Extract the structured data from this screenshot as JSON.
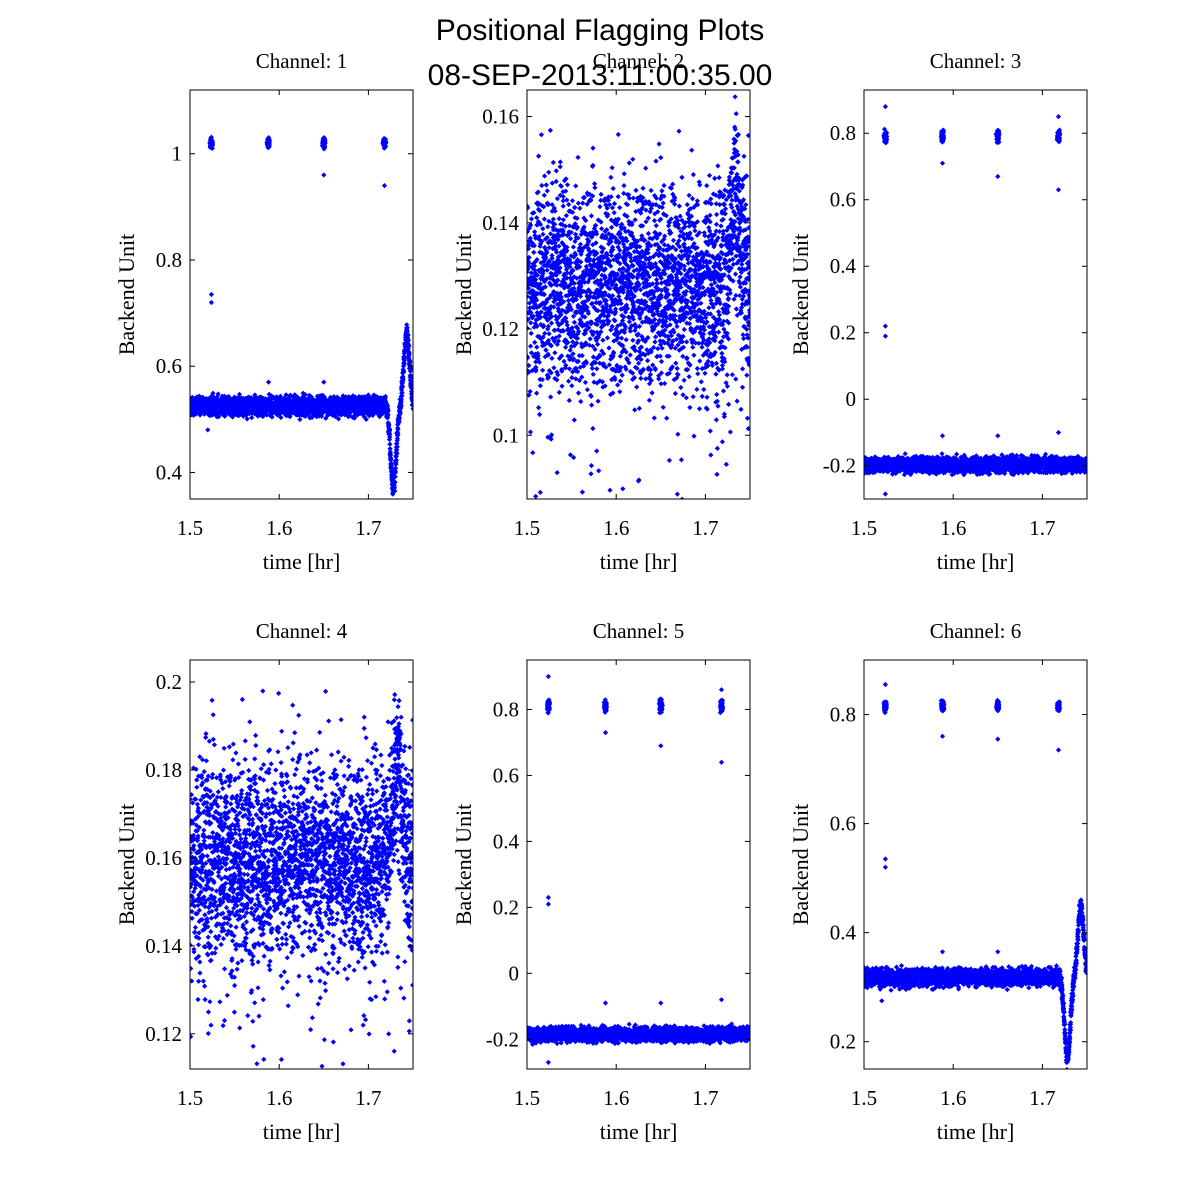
{
  "figure": {
    "title_line1": "Positional Flagging Plots",
    "title_line2": "08-SEP-2013:11:00:35.00",
    "marker_color": "#0000ff",
    "background": "#ffffff"
  },
  "chart_data": [
    {
      "type": "scatter",
      "title": "Channel: 1",
      "xlabel": "time [hr]",
      "ylabel": "Backend Unit",
      "xlim": [
        1.5,
        1.75
      ],
      "ylim": [
        0.35,
        1.12
      ],
      "xticks": [
        1.5,
        1.6,
        1.7
      ],
      "xtick_labels": [
        "1.5",
        "1.6",
        "1.7"
      ],
      "yticks": [
        0.4,
        0.6,
        0.8,
        1.0
      ],
      "ytick_labels": [
        "0.4",
        "0.6",
        "0.8",
        "1"
      ],
      "pattern": {
        "baseline": 0.525,
        "noise": 0.012,
        "spike_value": 1.02,
        "spike_times": [
          1.524,
          1.588,
          1.65,
          1.718
        ],
        "dip_start": 1.72,
        "dip_depth": 0.155,
        "peak_height": 0.135,
        "outliers": [
          [
            1.524,
            0.735
          ],
          [
            1.524,
            0.72
          ],
          [
            1.52,
            0.48
          ],
          [
            1.588,
            0.57
          ],
          [
            1.65,
            0.57
          ],
          [
            1.718,
            0.94
          ],
          [
            1.65,
            0.96
          ]
        ]
      }
    },
    {
      "type": "scatter",
      "title": "Channel: 2",
      "xlabel": "time [hr]",
      "ylabel": "Backend Unit",
      "xlim": [
        1.5,
        1.75
      ],
      "ylim": [
        0.088,
        0.165
      ],
      "xticks": [
        1.5,
        1.6,
        1.7
      ],
      "xtick_labels": [
        "1.5",
        "1.6",
        "1.7"
      ],
      "yticks": [
        0.1,
        0.12,
        0.14,
        0.16
      ],
      "ytick_labels": [
        "0.1",
        "0.12",
        "0.14",
        "0.16"
      ],
      "pattern": {
        "baseline": 0.128,
        "noise": 0.007,
        "bump_center": 1.733,
        "bump_height": 0.016,
        "low_excursion_min": 0.093,
        "high_excursion_max": 0.153
      }
    },
    {
      "type": "scatter",
      "title": "Channel: 3",
      "xlabel": "time [hr]",
      "ylabel": "Backend Unit",
      "xlim": [
        1.5,
        1.75
      ],
      "ylim": [
        -0.3,
        0.93
      ],
      "xticks": [
        1.5,
        1.6,
        1.7
      ],
      "xtick_labels": [
        "1.5",
        "1.6",
        "1.7"
      ],
      "yticks": [
        -0.2,
        0,
        0.2,
        0.4,
        0.6,
        0.8
      ],
      "ytick_labels": [
        "-0.2",
        "0",
        "0.2",
        "0.4",
        "0.6",
        "0.8"
      ],
      "pattern": {
        "baseline": -0.197,
        "noise": 0.016,
        "spike_value": 0.79,
        "spike_times": [
          1.524,
          1.588,
          1.65,
          1.718
        ],
        "outliers": [
          [
            1.524,
            0.88
          ],
          [
            1.524,
            0.22
          ],
          [
            1.524,
            0.19
          ],
          [
            1.524,
            -0.285
          ],
          [
            1.588,
            0.71
          ],
          [
            1.65,
            0.67
          ],
          [
            1.718,
            0.63
          ],
          [
            1.718,
            0.85
          ],
          [
            1.588,
            -0.11
          ],
          [
            1.65,
            -0.11
          ],
          [
            1.718,
            -0.1
          ]
        ]
      }
    },
    {
      "type": "scatter",
      "title": "Channel: 4",
      "xlabel": "time [hr]",
      "ylabel": "Backend Unit",
      "xlim": [
        1.5,
        1.75
      ],
      "ylim": [
        0.112,
        0.205
      ],
      "xticks": [
        1.5,
        1.6,
        1.7
      ],
      "xtick_labels": [
        "1.5",
        "1.6",
        "1.7"
      ],
      "yticks": [
        0.12,
        0.14,
        0.16,
        0.18,
        0.2
      ],
      "ytick_labels": [
        "0.12",
        "0.14",
        "0.16",
        "0.18",
        "0.2"
      ],
      "pattern": {
        "baseline": 0.159,
        "noise": 0.0085,
        "bump_center": 1.733,
        "bump_height": 0.022,
        "low_excursion_min": 0.12,
        "high_excursion_max": 0.195
      }
    },
    {
      "type": "scatter",
      "title": "Channel: 5",
      "xlabel": "time [hr]",
      "ylabel": "Backend Unit",
      "xlim": [
        1.5,
        1.75
      ],
      "ylim": [
        -0.29,
        0.95
      ],
      "xticks": [
        1.5,
        1.6,
        1.7
      ],
      "xtick_labels": [
        "1.5",
        "1.6",
        "1.7"
      ],
      "yticks": [
        -0.2,
        0,
        0.2,
        0.4,
        0.6,
        0.8
      ],
      "ytick_labels": [
        "-0.2",
        "0",
        "0.2",
        "0.4",
        "0.6",
        "0.8"
      ],
      "pattern": {
        "baseline": -0.185,
        "noise": 0.015,
        "spike_value": 0.81,
        "spike_times": [
          1.524,
          1.588,
          1.65,
          1.718
        ],
        "outliers": [
          [
            1.524,
            0.9
          ],
          [
            1.524,
            0.23
          ],
          [
            1.524,
            0.21
          ],
          [
            1.524,
            -0.27
          ],
          [
            1.588,
            0.73
          ],
          [
            1.65,
            0.69
          ],
          [
            1.718,
            0.64
          ],
          [
            1.718,
            0.86
          ],
          [
            1.588,
            -0.09
          ],
          [
            1.65,
            -0.09
          ],
          [
            1.718,
            -0.08
          ]
        ]
      }
    },
    {
      "type": "scatter",
      "title": "Channel: 6",
      "xlabel": "time [hr]",
      "ylabel": "Backend Unit",
      "xlim": [
        1.5,
        1.75
      ],
      "ylim": [
        0.15,
        0.9
      ],
      "xticks": [
        1.5,
        1.6,
        1.7
      ],
      "xtick_labels": [
        "1.5",
        "1.6",
        "1.7"
      ],
      "yticks": [
        0.2,
        0.4,
        0.6,
        0.8
      ],
      "ytick_labels": [
        "0.2",
        "0.4",
        "0.6",
        "0.8"
      ],
      "pattern": {
        "baseline": 0.318,
        "noise": 0.011,
        "spike_value": 0.815,
        "spike_times": [
          1.524,
          1.588,
          1.65,
          1.718
        ],
        "dip_start": 1.72,
        "dip_depth": 0.15,
        "peak_height": 0.13,
        "outliers": [
          [
            1.524,
            0.855
          ],
          [
            1.524,
            0.535
          ],
          [
            1.524,
            0.52
          ],
          [
            1.52,
            0.275
          ],
          [
            1.588,
            0.365
          ],
          [
            1.65,
            0.365
          ],
          [
            1.588,
            0.76
          ],
          [
            1.65,
            0.755
          ],
          [
            1.718,
            0.735
          ]
        ]
      }
    }
  ]
}
